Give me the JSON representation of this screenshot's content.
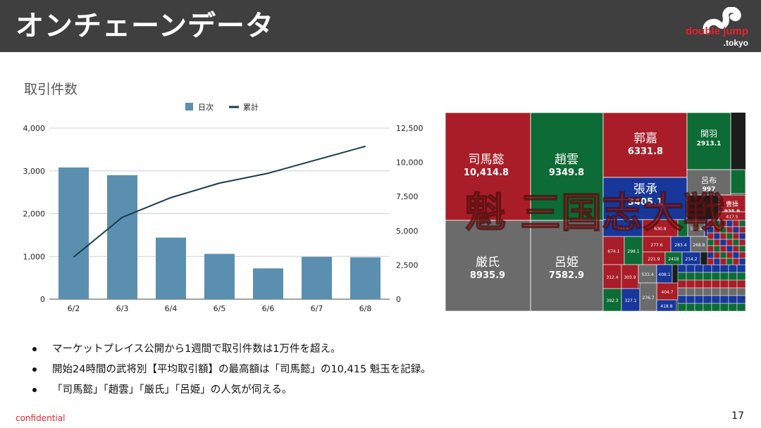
{
  "header": {
    "title": "オンチェーンデータ",
    "logo_main": "double jump",
    "logo_sub": ".tokyo"
  },
  "section_title": "取引件数",
  "chart_data": {
    "type": "bar",
    "categories": [
      "6/2",
      "6/3",
      "6/4",
      "6/5",
      "6/6",
      "6/7",
      "6/8"
    ],
    "series": [
      {
        "name": "日次",
        "type": "bar",
        "axis": "left",
        "color": "#5b8fb0",
        "values": [
          3080,
          2900,
          1440,
          1060,
          720,
          990,
          980
        ]
      },
      {
        "name": "累計",
        "type": "line",
        "axis": "right",
        "color": "#1a3b4d",
        "values": [
          3080,
          5980,
          7420,
          8480,
          9200,
          10190,
          11170
        ]
      }
    ],
    "y_left": {
      "ticks": [
        "0",
        "1,000",
        "2,000",
        "3,000",
        "4,000"
      ],
      "range": [
        0,
        4000
      ]
    },
    "y_right": {
      "ticks": [
        "0",
        "2,500",
        "5,000",
        "7,500",
        "10,000",
        "12,500"
      ],
      "range": [
        0,
        12500
      ]
    },
    "legend_position": "top",
    "grid": true
  },
  "treemap": {
    "colors": {
      "red": "#a81d27",
      "green": "#0d6b35",
      "gray": "#6b6b6b",
      "blue": "#17379a"
    },
    "major_tiles": [
      {
        "name": "司馬懿",
        "value": "10,414.8",
        "color": "red"
      },
      {
        "name": "趙雲",
        "value": "9349.8",
        "color": "green"
      },
      {
        "name": "郭嘉",
        "value": "6331.8",
        "color": "red"
      },
      {
        "name": "関羽",
        "value": "2913.1",
        "color": "green"
      },
      {
        "name": "呂布",
        "value": "997",
        "color": "gray"
      },
      {
        "name": "張承",
        "value": "3405.1",
        "color": "blue"
      },
      {
        "name": "曹操",
        "value": "925.9",
        "color": "red"
      },
      {
        "name": "厳氏",
        "value": "8935.9",
        "color": "gray"
      },
      {
        "name": "呂姫",
        "value": "7582.9",
        "color": "gray"
      }
    ],
    "minor_values": [
      "793.6",
      "630.8",
      "570.2",
      "554.8",
      "775.3",
      "674.1",
      "298.1",
      "277.6",
      "283.4",
      "268.8",
      "221.9",
      "2418",
      "214.2",
      "312.4",
      "303.9",
      "533.4",
      "408.1",
      "404.7",
      "392.3",
      "327.1",
      "276.7",
      "418.8",
      "417.5"
    ],
    "watermark": "魁 三国志大戦"
  },
  "bullets": [
    "マーケットプレイス公開から1週間で取引件数は1万件を超え。",
    "開始24時間の武将別【平均取引額】の最高額は「司馬懿」の10,415 魁玉を記録。",
    "「司馬懿」「趙雲」「厳氏」「呂姫」の人気が伺える。"
  ],
  "footer": {
    "confidential": "confidential",
    "page_number": "17"
  }
}
